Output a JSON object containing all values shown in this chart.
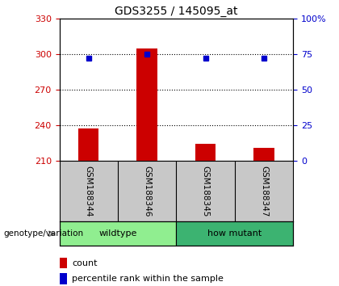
{
  "title": "GDS3255 / 145095_at",
  "samples": [
    "GSM188344",
    "GSM188346",
    "GSM188345",
    "GSM188347"
  ],
  "counts": [
    237,
    305,
    224,
    221
  ],
  "percentile_ranks": [
    72,
    75,
    72,
    72
  ],
  "base_count": 210,
  "ylim_left": [
    210,
    330
  ],
  "yticks_left": [
    210,
    240,
    270,
    300,
    330
  ],
  "ylim_right": [
    0,
    100
  ],
  "yticks_right": [
    0,
    25,
    50,
    75,
    100
  ],
  "groups": [
    {
      "label": "wildtype",
      "indices": [
        0,
        1
      ],
      "color": "#90EE90"
    },
    {
      "label": "how mutant",
      "indices": [
        2,
        3
      ],
      "color": "#3CB371"
    }
  ],
  "bar_color": "#CC0000",
  "dot_color": "#0000CC",
  "bar_width": 0.35,
  "plot_bg": "#FFFFFF",
  "tick_label_area_bg": "#C8C8C8",
  "grid_color": "#000000",
  "genotype_label": "genotype/variation",
  "legend_count_label": "count",
  "legend_pct_label": "percentile rank within the sample",
  "left_tick_color": "#CC0000",
  "right_tick_color": "#0000CC"
}
